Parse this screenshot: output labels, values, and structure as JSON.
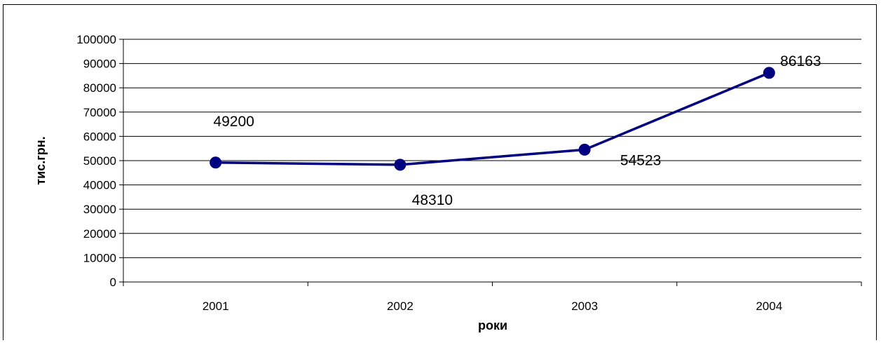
{
  "chart_data": {
    "type": "line",
    "categories": [
      "2001",
      "2002",
      "2003",
      "2004"
    ],
    "series": [
      {
        "values": [
          49200,
          48310,
          54523,
          86163
        ]
      }
    ],
    "data_labels": [
      "49200",
      "48310",
      "54523",
      "86163"
    ],
    "xlabel": "роки",
    "ylabel": "тис.грн.",
    "ylim": [
      0,
      100000
    ],
    "yticks": [
      0,
      10000,
      20000,
      30000,
      40000,
      50000,
      60000,
      70000,
      80000,
      90000,
      100000
    ],
    "ytick_labels": [
      "0",
      "10000",
      "20000",
      "30000",
      "40000",
      "50000",
      "60000",
      "70000",
      "80000",
      "90000",
      "100000"
    ],
    "grid": true,
    "legend": "none",
    "colors": {
      "series": "#000080",
      "grid": "#000000"
    }
  }
}
